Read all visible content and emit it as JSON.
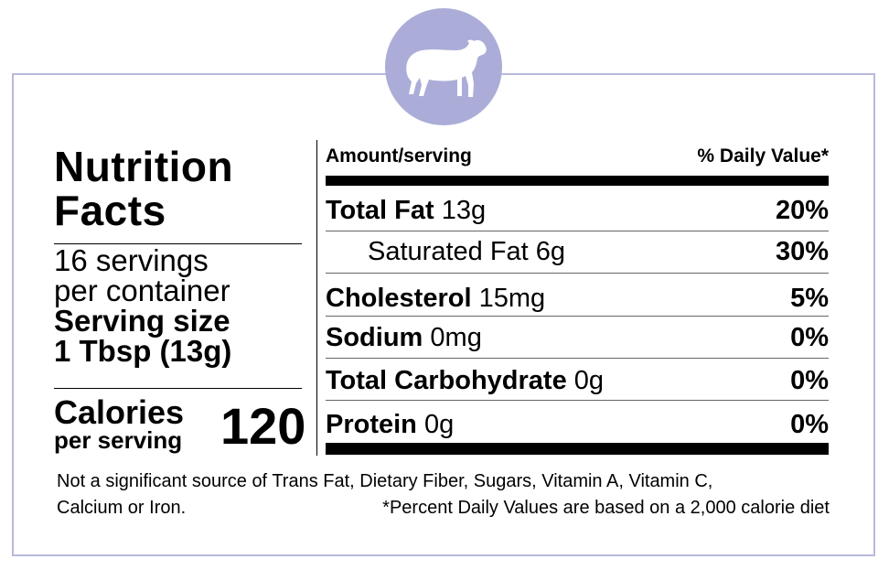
{
  "header": {
    "title_line1": "Nutrition",
    "title_line2": "Facts",
    "icon": "lamb-icon"
  },
  "servings": {
    "line1": "16 servings",
    "line2": "per container",
    "size_label": "Serving size",
    "size_value": "1 Tbsp (13g)"
  },
  "calories": {
    "label": "Calories",
    "sublabel": "per serving",
    "value": "120"
  },
  "table": {
    "amount_header": "Amount/serving",
    "dv_header": "% Daily Value*",
    "rows": [
      {
        "name": "Total Fat",
        "amount": "13g",
        "dv": "20%"
      },
      {
        "name": "Saturated Fat",
        "amount": "6g",
        "dv": "30%"
      },
      {
        "name": "Cholesterol",
        "amount": "15mg",
        "dv": "5%"
      },
      {
        "name": "Sodium",
        "amount": "0mg",
        "dv": "0%"
      },
      {
        "name": "Total Carbohydrate",
        "amount": "0g",
        "dv": "0%"
      },
      {
        "name": "Protein",
        "amount": "0g",
        "dv": "0%"
      }
    ]
  },
  "footer": {
    "line1": "Not a significant source of Trans Fat, Dietary Fiber, Sugars, Vitamin A, Vitamin C,",
    "line2_left": "Calcium or Iron.",
    "line2_right": "*Percent Daily Values are based on a 2,000 calorie diet"
  },
  "colors": {
    "border": "#b9b9dc",
    "badge": "#abadd8"
  }
}
